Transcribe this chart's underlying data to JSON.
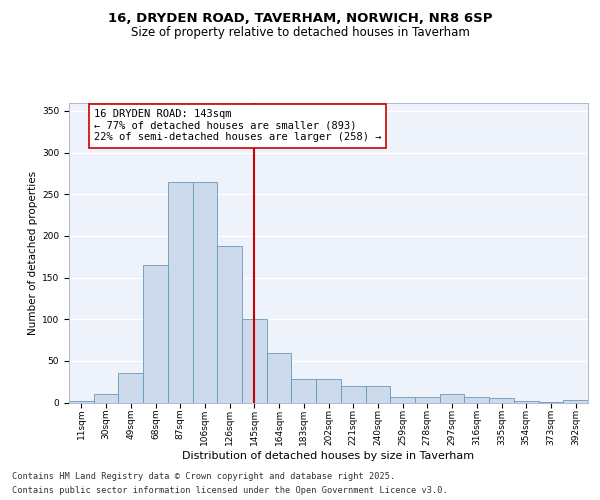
{
  "title": "16, DRYDEN ROAD, TAVERHAM, NORWICH, NR8 6SP",
  "subtitle": "Size of property relative to detached houses in Taverham",
  "xlabel": "Distribution of detached houses by size in Taverham",
  "ylabel": "Number of detached properties",
  "bar_color": "#ccdaeb",
  "bar_edge_color": "#6699bb",
  "categories": [
    "11sqm",
    "30sqm",
    "49sqm",
    "68sqm",
    "87sqm",
    "106sqm",
    "126sqm",
    "145sqm",
    "164sqm",
    "183sqm",
    "202sqm",
    "221sqm",
    "240sqm",
    "259sqm",
    "278sqm",
    "297sqm",
    "316sqm",
    "335sqm",
    "354sqm",
    "373sqm",
    "392sqm"
  ],
  "values": [
    2,
    10,
    35,
    165,
    265,
    265,
    188,
    100,
    60,
    28,
    28,
    20,
    20,
    7,
    7,
    10,
    7,
    5,
    2,
    1,
    3
  ],
  "vline_color": "#cc0000",
  "vline_index": 7.0,
  "ylim": [
    0,
    360
  ],
  "yticks": [
    0,
    50,
    100,
    150,
    200,
    250,
    300,
    350
  ],
  "annotation_line1": "16 DRYDEN ROAD: 143sqm",
  "annotation_line2": "← 77% of detached houses are smaller (893)",
  "annotation_line3": "22% of semi-detached houses are larger (258) →",
  "background_color": "#eef2fb",
  "grid_color": "#ffffff",
  "footer_line1": "Contains HM Land Registry data © Crown copyright and database right 2025.",
  "footer_line2": "Contains public sector information licensed under the Open Government Licence v3.0.",
  "title_fontsize": 9.5,
  "subtitle_fontsize": 8.5,
  "ylabel_fontsize": 7.5,
  "xlabel_fontsize": 8,
  "tick_fontsize": 6.5,
  "annotation_fontsize": 7.5,
  "footer_fontsize": 6.2
}
